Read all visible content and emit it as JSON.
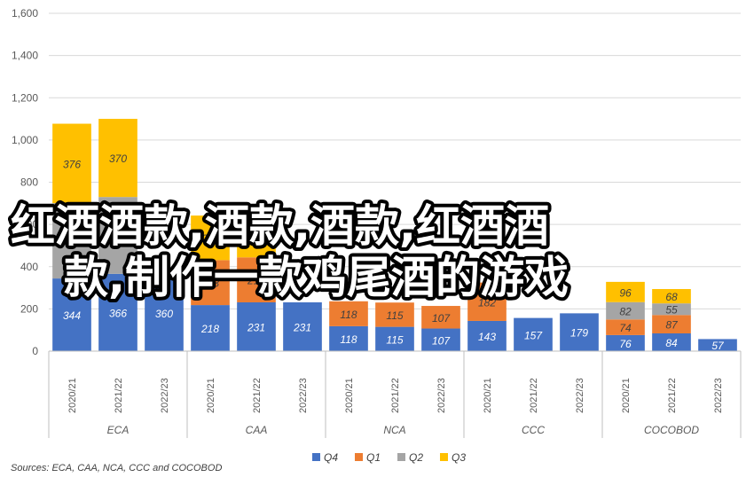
{
  "chart_data": {
    "type": "bar",
    "stacked": true,
    "ylim": [
      0,
      1600
    ],
    "yticks": [
      "0",
      "200",
      "400",
      "600",
      "800",
      "1,000",
      "1,200",
      "1,400",
      "1,600"
    ],
    "ytick_values": [
      0,
      200,
      400,
      600,
      800,
      1000,
      1200,
      1400,
      1600
    ],
    "grid": true,
    "legend_position": "bottom",
    "groups": [
      {
        "name": "ECA",
        "categories": [
          "2020/21",
          "2021/22",
          "2022/23"
        ]
      },
      {
        "name": "CAA",
        "categories": [
          "2020/21",
          "2021/22",
          "2022/23"
        ]
      },
      {
        "name": "NCA",
        "categories": [
          "2020/21",
          "2021/22",
          "2022/23"
        ]
      },
      {
        "name": "CCC",
        "categories": [
          "2020/21",
          "2021/22",
          "2022/23"
        ]
      },
      {
        "name": "COCOBOD",
        "categories": [
          "2020/21",
          "2021/22",
          "2022/23"
        ]
      }
    ],
    "series": [
      {
        "name": "Q4",
        "color": "#4472C4",
        "label_color": "#ffffff",
        "values": [
          344,
          366,
          360,
          218,
          231,
          231,
          118,
          115,
          107,
          143,
          157,
          179,
          76,
          84,
          57
        ]
      },
      {
        "name": "Q1",
        "color": "#ED7D31",
        "label_color": "#404040",
        "values": [
          null,
          null,
          null,
          213,
          213,
          null,
          118,
          115,
          107,
          182,
          null,
          null,
          74,
          87,
          null
        ]
      },
      {
        "name": "Q2",
        "color": "#A5A5A5",
        "label_color": "#404040",
        "values": [
          357,
          364,
          null,
          null,
          null,
          null,
          null,
          null,
          null,
          null,
          null,
          null,
          82,
          55,
          null
        ]
      },
      {
        "name": "Q3",
        "color": "#FFC000",
        "label_color": "#404040",
        "values": [
          376,
          370,
          null,
          211,
          231,
          null,
          null,
          null,
          null,
          null,
          null,
          null,
          96,
          68,
          null
        ]
      }
    ],
    "source": "Sources: ECA, CAA, NCA, CCC and COCOBOD"
  },
  "overlay_text": {
    "line1": "红酒酒款,酒款,酒款,红酒酒",
    "line2": "款,制作一款鸡尾酒的游戏"
  }
}
